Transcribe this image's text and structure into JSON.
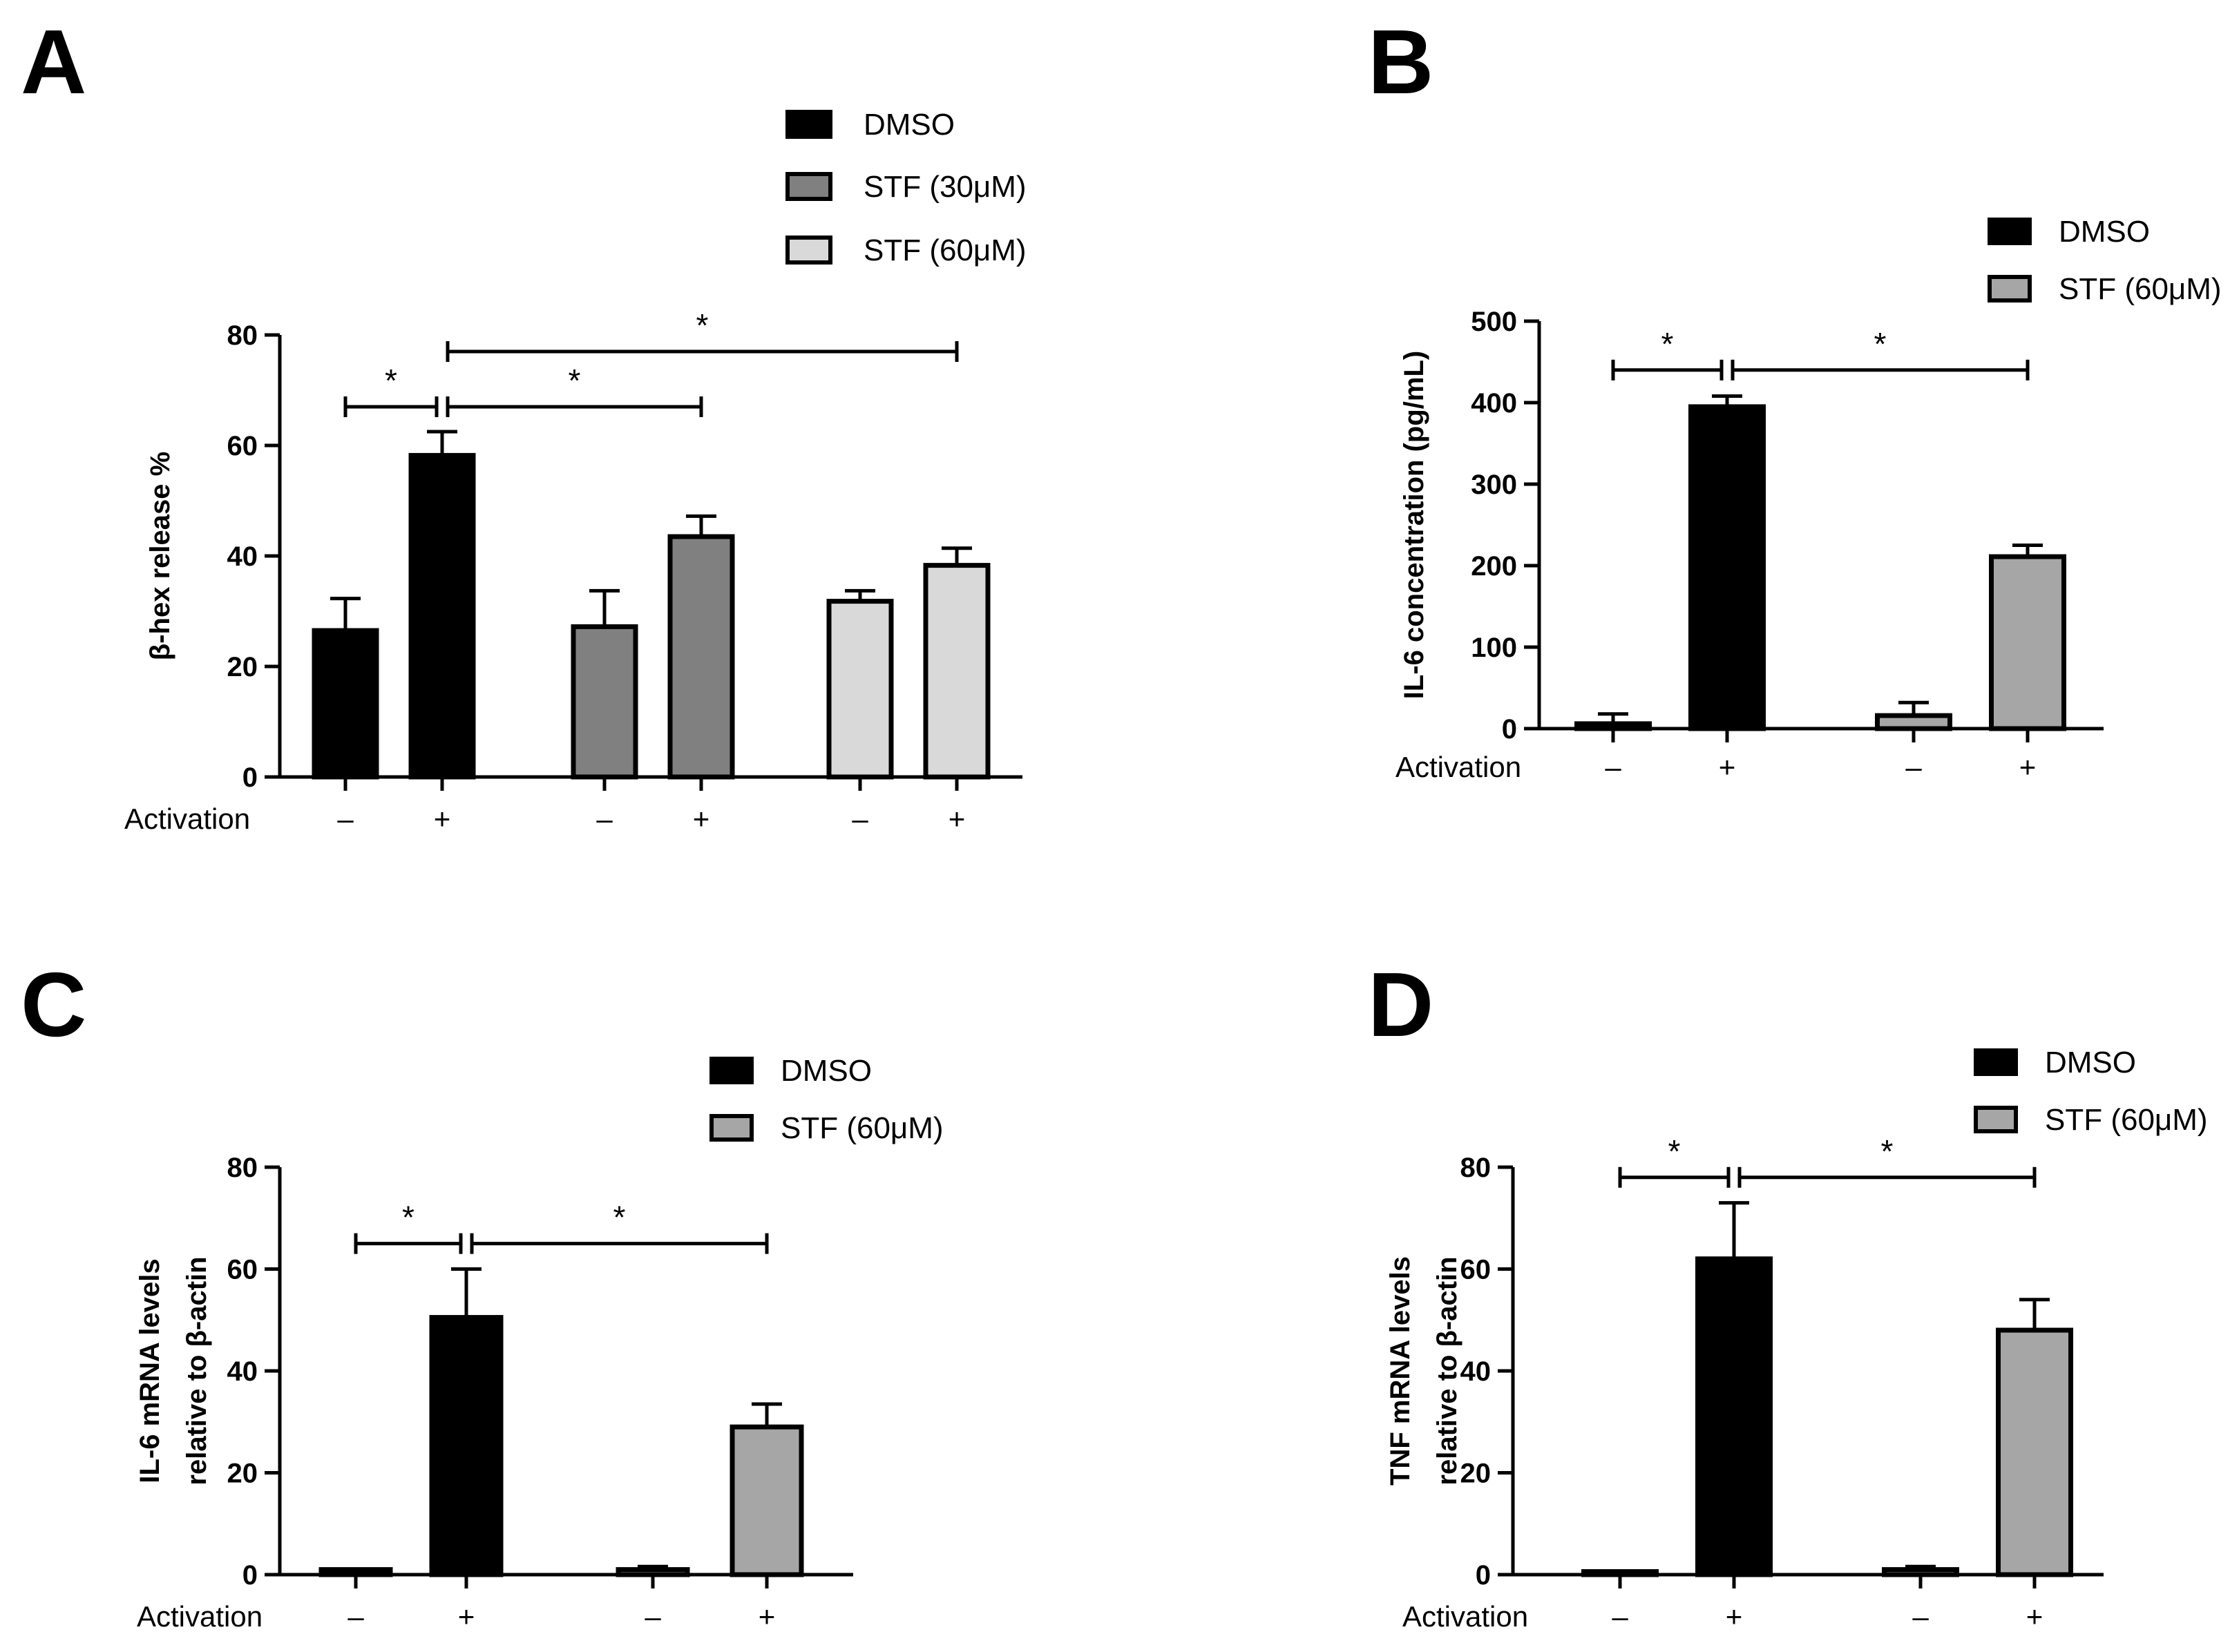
{
  "chart_data": [
    {
      "panel": "A",
      "type": "bar",
      "ylabel": "β-hex release %",
      "ylim": [
        0,
        80
      ],
      "yticks": [
        0,
        20,
        40,
        60,
        80
      ],
      "xlabel": "Activation",
      "activation_labels": [
        "–",
        "+",
        "–",
        "+",
        "–",
        "+"
      ],
      "legend": [
        {
          "name": "DMSO",
          "color": "#000000"
        },
        {
          "name": "STF (30μM)",
          "color": "#808080"
        },
        {
          "name": "STF (60μM)",
          "color": "#d9d9d9"
        }
      ],
      "bars": [
        {
          "series": 0,
          "activation": "–",
          "value": 26.5,
          "error": 5.8
        },
        {
          "series": 0,
          "activation": "+",
          "value": 58.2,
          "error": 4.3
        },
        {
          "series": 1,
          "activation": "–",
          "value": 27.2,
          "error": 6.5
        },
        {
          "series": 1,
          "activation": "+",
          "value": 43.5,
          "error": 3.7
        },
        {
          "series": 2,
          "activation": "–",
          "value": 31.8,
          "error": 1.9
        },
        {
          "series": 2,
          "activation": "+",
          "value": 38.3,
          "error": 3.1
        }
      ],
      "significance": [
        {
          "from": 0,
          "to": 1,
          "y": 67,
          "label": "*"
        },
        {
          "from": 1,
          "to": 3,
          "y": 67,
          "label": "*"
        },
        {
          "from": 1,
          "to": 5,
          "y": 77,
          "label": "*"
        }
      ]
    },
    {
      "panel": "B",
      "type": "bar",
      "ylabel": "IL-6 concentration (pg/mL)",
      "ylim": [
        0,
        500
      ],
      "yticks": [
        0,
        100,
        200,
        300,
        400,
        500
      ],
      "xlabel": "Activation",
      "activation_labels": [
        "–",
        "+",
        "–",
        "+"
      ],
      "legend": [
        {
          "name": "DMSO",
          "color": "#000000"
        },
        {
          "name": "STF (60μM)",
          "color": "#a6a6a6"
        }
      ],
      "bars": [
        {
          "series": 0,
          "activation": "–",
          "value": 6,
          "error": 12
        },
        {
          "series": 0,
          "activation": "+",
          "value": 395,
          "error": 13
        },
        {
          "series": 1,
          "activation": "–",
          "value": 16,
          "error": 16
        },
        {
          "series": 1,
          "activation": "+",
          "value": 211,
          "error": 14
        }
      ],
      "significance": [
        {
          "from": 0,
          "to": 1,
          "y": 440,
          "label": "*"
        },
        {
          "from": 1,
          "to": 3,
          "y": 440,
          "label": "*"
        }
      ]
    },
    {
      "panel": "C",
      "type": "bar",
      "ylabel_lines": [
        "IL-6 mRNA levels",
        "relative to β-actin"
      ],
      "ylim": [
        0,
        80
      ],
      "yticks": [
        0,
        20,
        40,
        60,
        80
      ],
      "xlabel": "Activation",
      "activation_labels": [
        "–",
        "+",
        "–",
        "+"
      ],
      "legend": [
        {
          "name": "DMSO",
          "color": "#000000"
        },
        {
          "name": "STF (60μM)",
          "color": "#a6a6a6"
        }
      ],
      "bars": [
        {
          "series": 0,
          "activation": "–",
          "value": 1,
          "error": 0
        },
        {
          "series": 0,
          "activation": "+",
          "value": 50.5,
          "error": 9.5
        },
        {
          "series": 1,
          "activation": "–",
          "value": 1,
          "error": 0.6
        },
        {
          "series": 1,
          "activation": "+",
          "value": 29,
          "error": 4.5
        }
      ],
      "significance": [
        {
          "from": 0,
          "to": 1,
          "y": 65,
          "label": "*"
        },
        {
          "from": 1,
          "to": 3,
          "y": 65,
          "label": "*"
        }
      ]
    },
    {
      "panel": "D",
      "type": "bar",
      "ylabel_lines": [
        "TNF mRNA levels",
        "relative to β-actin"
      ],
      "ylim": [
        0,
        80
      ],
      "yticks": [
        0,
        20,
        40,
        60,
        80
      ],
      "xlabel": "Activation",
      "activation_labels": [
        "–",
        "+",
        "–",
        "+"
      ],
      "legend": [
        {
          "name": "DMSO",
          "color": "#000000"
        },
        {
          "name": "STF (60μM)",
          "color": "#a6a6a6"
        }
      ],
      "bars": [
        {
          "series": 0,
          "activation": "–",
          "value": 0.6,
          "error": 0
        },
        {
          "series": 0,
          "activation": "+",
          "value": 62,
          "error": 11
        },
        {
          "series": 1,
          "activation": "–",
          "value": 1,
          "error": 0.6
        },
        {
          "series": 1,
          "activation": "+",
          "value": 48,
          "error": 6
        }
      ],
      "significance": [
        {
          "from": 0,
          "to": 1,
          "y": 78,
          "label": "*"
        },
        {
          "from": 1,
          "to": 3,
          "y": 78,
          "label": "*"
        }
      ]
    }
  ]
}
